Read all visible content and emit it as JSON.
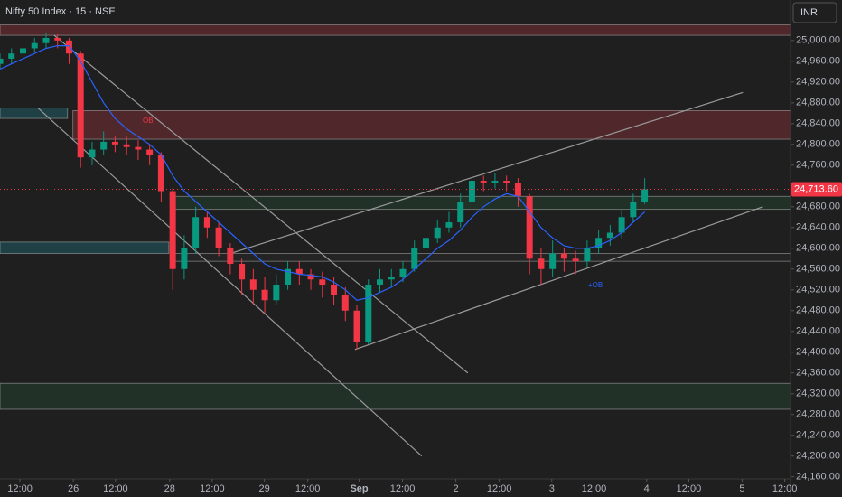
{
  "chart_data": {
    "type": "candlestick",
    "title": "Nifty 50 Index · 15 · NSE",
    "currency": "INR",
    "up_color": "#089981",
    "down_color": "#f23645",
    "ma_color": "#2962ff",
    "grid": false,
    "xlim": [
      0,
      206
    ],
    "ylim": [
      24156,
      25078
    ],
    "xticks": [
      {
        "value": 5.2,
        "label": "12:00"
      },
      {
        "value": 19.1,
        "label": "26"
      },
      {
        "value": 30.1,
        "label": "12:00"
      },
      {
        "value": 44.2,
        "label": "28"
      },
      {
        "value": 55.3,
        "label": "12:00"
      },
      {
        "value": 68.9,
        "label": "29"
      },
      {
        "value": 80.2,
        "label": "12:00"
      },
      {
        "value": 93.6,
        "label": "Sep"
      },
      {
        "value": 104.9,
        "label": "12:00"
      },
      {
        "value": 118.8,
        "label": "2"
      },
      {
        "value": 130.1,
        "label": "12:00"
      },
      {
        "value": 143.8,
        "label": "3"
      },
      {
        "value": 154.8,
        "label": "12:00"
      },
      {
        "value": 168.5,
        "label": "4"
      },
      {
        "value": 179.5,
        "label": "12:00"
      },
      {
        "value": 193.4,
        "label": "5"
      },
      {
        "value": 204.5,
        "label": "12:00"
      }
    ],
    "yticks": [
      {
        "value": 24160,
        "label": "24,160.00"
      },
      {
        "value": 24200,
        "label": "24,200.00"
      },
      {
        "value": 24240,
        "label": "24,240.00"
      },
      {
        "value": 24280,
        "label": "24,280.00"
      },
      {
        "value": 24320,
        "label": "24,320.00"
      },
      {
        "value": 24360,
        "label": "24,360.00"
      },
      {
        "value": 24400,
        "label": "24,400.00"
      },
      {
        "value": 24440,
        "label": "24,440.00"
      },
      {
        "value": 24480,
        "label": "24,480.00"
      },
      {
        "value": 24520,
        "label": "24,520.00"
      },
      {
        "value": 24560,
        "label": "24,560.00"
      },
      {
        "value": 24600,
        "label": "24,600.00"
      },
      {
        "value": 24640,
        "label": "24,640.00"
      },
      {
        "value": 24680,
        "label": "24,680.00"
      },
      {
        "value": 24760,
        "label": "24,760.00"
      },
      {
        "value": 24800,
        "label": "24,800.00"
      },
      {
        "value": 24840,
        "label": "24,840.00"
      },
      {
        "value": 24880,
        "label": "24,880.00"
      },
      {
        "value": 24920,
        "label": "24,920.00"
      },
      {
        "value": 24960,
        "label": "24,960.00"
      },
      {
        "value": 25000,
        "label": "25,000.00"
      }
    ],
    "last_price": {
      "value": 24713.6,
      "label": "24,713.60"
    },
    "x": [
      0,
      3,
      6,
      9,
      12,
      15,
      18,
      21,
      24,
      27,
      30,
      33,
      36,
      39,
      42,
      45,
      48,
      51,
      54,
      57,
      60,
      63,
      66,
      69,
      72,
      75,
      78,
      81,
      84,
      87,
      90,
      93,
      96,
      99,
      102,
      105,
      108,
      111,
      114,
      117,
      120,
      123,
      126,
      129,
      132,
      135,
      138,
      141,
      144,
      147,
      150,
      153,
      156,
      159,
      162,
      165,
      168
    ],
    "open": [
      24955,
      24965,
      24975,
      24985,
      24995,
      25005,
      25000,
      24975,
      24775,
      24790,
      24805,
      24800,
      24795,
      24790,
      24780,
      24710,
      24560,
      24600,
      24660,
      24640,
      24600,
      24570,
      24540,
      24520,
      24500,
      24530,
      24560,
      24550,
      24540,
      24530,
      24510,
      24480,
      24420,
      24530,
      24540,
      24545,
      24560,
      24600,
      24620,
      24640,
      24650,
      24690,
      24730,
      24725,
      24730,
      24725,
      24700,
      24580,
      24560,
      24590,
      24580,
      24575,
      24600,
      24620,
      24630,
      24660,
      24690
    ],
    "high": [
      24975,
      24985,
      24995,
      25005,
      25015,
      25012,
      25005,
      24980,
      24805,
      24825,
      24815,
      24815,
      24808,
      24800,
      24785,
      24715,
      24625,
      24680,
      24670,
      24650,
      24610,
      24580,
      24560,
      24545,
      24550,
      24575,
      24575,
      24560,
      24555,
      24545,
      24525,
      24490,
      24540,
      24560,
      24560,
      24575,
      24615,
      24635,
      24655,
      24670,
      24705,
      24745,
      24740,
      24745,
      24740,
      24735,
      24705,
      24600,
      24615,
      24600,
      24595,
      24615,
      24635,
      24645,
      24675,
      24705,
      24735
    ],
    "low": [
      24945,
      24955,
      24965,
      24978,
      24985,
      24985,
      24955,
      24755,
      24760,
      24780,
      24785,
      24780,
      24770,
      24760,
      24690,
      24520,
      24540,
      24590,
      24620,
      24585,
      24550,
      24510,
      24490,
      24475,
      24490,
      24520,
      24530,
      24520,
      24505,
      24490,
      24460,
      24405,
      24415,
      24515,
      24525,
      24535,
      24555,
      24590,
      24610,
      24630,
      24640,
      24685,
      24710,
      24715,
      24710,
      24680,
      24550,
      24530,
      24545,
      24555,
      24550,
      24565,
      24590,
      24605,
      24620,
      24650,
      24685
    ],
    "close": [
      24965,
      24975,
      24985,
      24995,
      25005,
      25000,
      24975,
      24775,
      24790,
      24805,
      24800,
      24795,
      24790,
      24780,
      24710,
      24560,
      24600,
      24660,
      24640,
      24600,
      24570,
      24540,
      24520,
      24500,
      24530,
      24560,
      24550,
      24540,
      24530,
      24510,
      24480,
      24420,
      24530,
      24540,
      24545,
      24560,
      24600,
      24620,
      24640,
      24650,
      24690,
      24730,
      24725,
      24730,
      24725,
      24700,
      24580,
      24560,
      24590,
      24580,
      24575,
      24600,
      24620,
      24630,
      24660,
      24690,
      24713.6
    ],
    "ma": [
      24945,
      24955,
      24965,
      24975,
      24985,
      24990,
      24990,
      24960,
      24920,
      24880,
      24850,
      24830,
      24815,
      24800,
      24780,
      24740,
      24710,
      24690,
      24670,
      24650,
      24630,
      24610,
      24590,
      24570,
      24560,
      24555,
      24550,
      24548,
      24545,
      24535,
      24520,
      24500,
      24505,
      24515,
      24525,
      24540,
      24560,
      24580,
      24600,
      24615,
      24635,
      24660,
      24680,
      24695,
      24705,
      24700,
      24670,
      24640,
      24620,
      24605,
      24600,
      24600,
      24605,
      24615,
      24630,
      24650,
      24670
    ],
    "zones": [
      {
        "x": [
          0,
          206
        ],
        "y": [
          25010,
          25030
        ],
        "color": "#5c2a2e"
      },
      {
        "x": [
          19,
          206
        ],
        "y": [
          24810,
          24865
        ],
        "color": "#5c2a2e"
      },
      {
        "x": [
          0,
          17.6
        ],
        "y": [
          24850,
          24870
        ],
        "color": "#1f4a4f"
      },
      {
        "x": [
          0,
          44
        ],
        "y": [
          24590,
          24612
        ],
        "color": "#1f4a4f"
      },
      {
        "x": [
          0,
          206
        ],
        "y": [
          24290,
          24340
        ],
        "color": "#22362a"
      },
      {
        "x": [
          45,
          206
        ],
        "y": [
          24675,
          24700
        ],
        "color": "#22362a"
      },
      {
        "x": [
          45,
          206
        ],
        "y": [
          24575,
          24590
        ],
        "color": "#262626"
      }
    ],
    "lines": [
      {
        "x": [
          14.1,
          121.9
        ],
        "y": [
          25010,
          24360
        ]
      },
      {
        "x": [
          9.9,
          109.9
        ],
        "y": [
          24870,
          24200
        ]
      },
      {
        "x": [
          60,
          193.6
        ],
        "y": [
          24590,
          24900
        ]
      },
      {
        "x": [
          92.5,
          198.8
        ],
        "y": [
          24405,
          24680
        ]
      }
    ],
    "annotations": [
      "OB",
      "+OB"
    ]
  }
}
